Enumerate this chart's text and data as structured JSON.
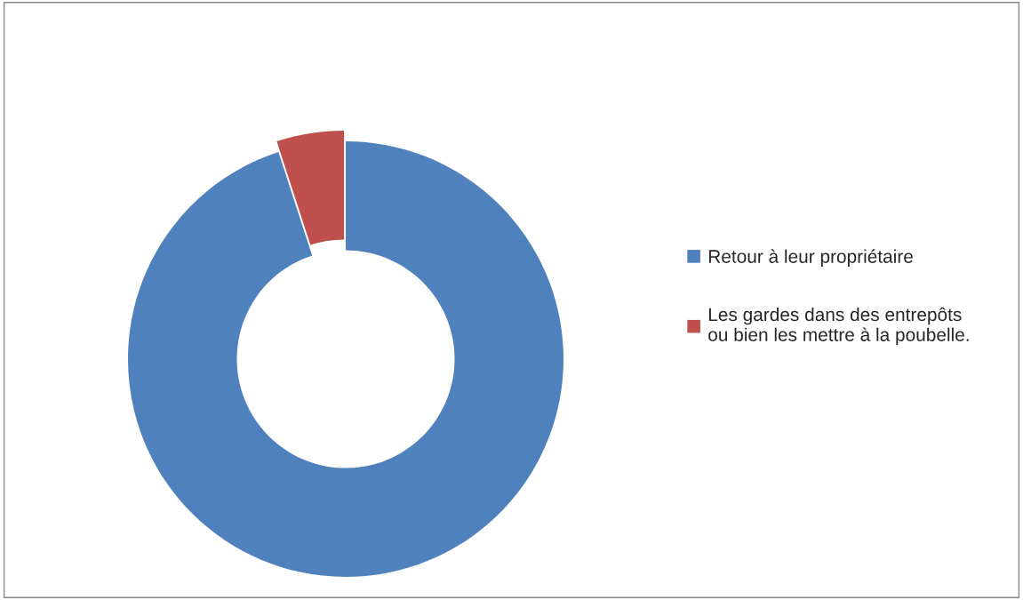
{
  "chart_data": {
    "type": "donut",
    "categories": [
      "Retour à leur propriétaire",
      "Les gardes dans des entrepôts\nou bien les mettre à la poubelle."
    ],
    "values": [
      95,
      5
    ],
    "colors": [
      "#4f81bd",
      "#c0504d"
    ],
    "legend": "right"
  }
}
